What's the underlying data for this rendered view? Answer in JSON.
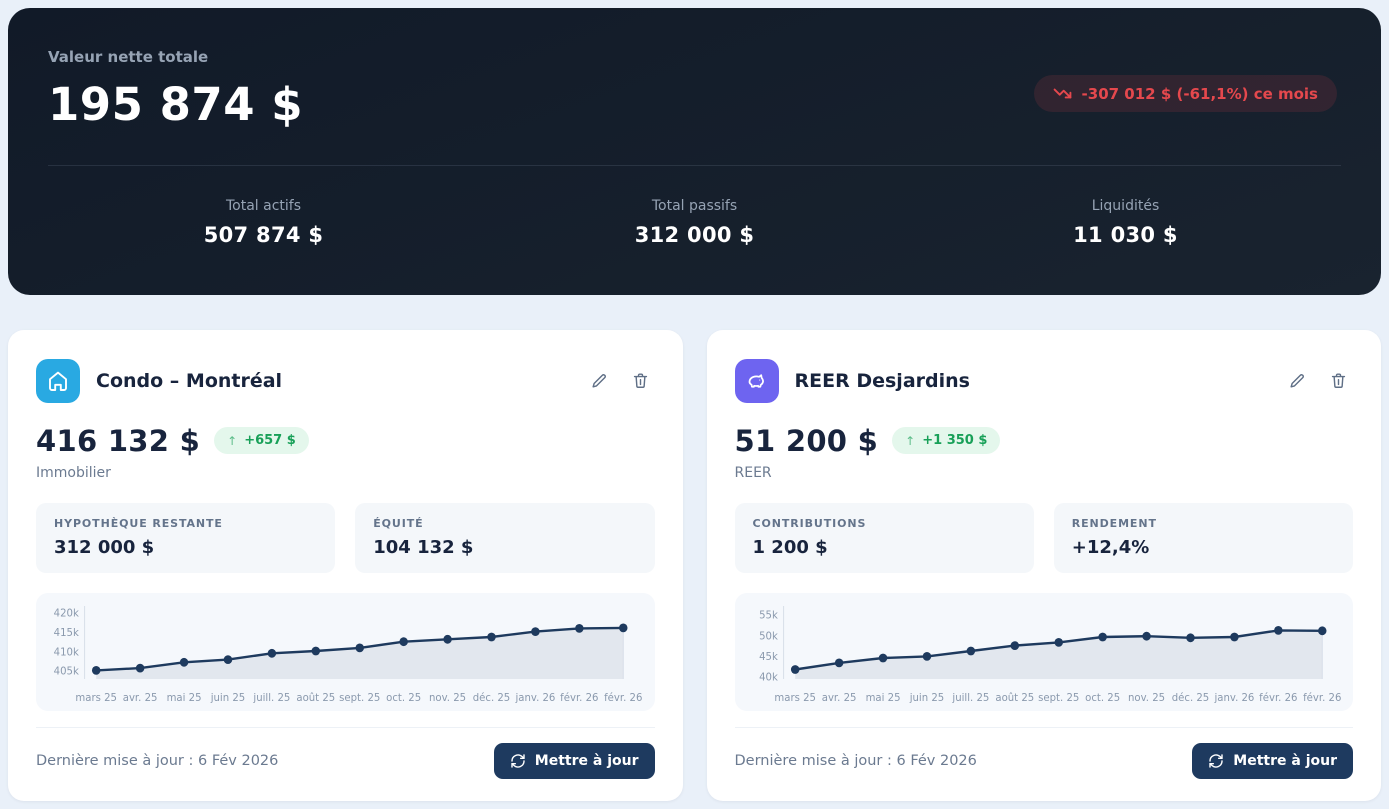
{
  "summary": {
    "label": "Valeur nette totale",
    "value": "195 874 $",
    "change_badge": "-307 012 $ (-61,1%) ce mois",
    "stats": [
      {
        "label": "Total actifs",
        "value": "507 874 $"
      },
      {
        "label": "Total passifs",
        "value": "312 000 $"
      },
      {
        "label": "Liquidités",
        "value": "11 030 $"
      }
    ]
  },
  "cards": [
    {
      "title": "Condo – Montréal",
      "icon": "house-icon",
      "icon_color": "#29a9e2",
      "value": "416 132 $",
      "change": "+657 $",
      "category": "Immobilier",
      "stats": [
        {
          "label": "HYPOTHÈQUE RESTANTE",
          "value": "312 000 $"
        },
        {
          "label": "ÉQUITÉ",
          "value": "104 132 $"
        }
      ],
      "last_updated": "Dernière mise à jour : 6 Fév 2026",
      "update_button": "Mettre à jour"
    },
    {
      "title": "REER Desjardins",
      "icon": "piggy-bank-icon",
      "icon_color": "#6e64f0",
      "value": "51 200 $",
      "change": "+1 350 $",
      "category": "REER",
      "stats": [
        {
          "label": "CONTRIBUTIONS",
          "value": "1 200 $"
        },
        {
          "label": "RENDEMENT",
          "value": "+12,4%"
        }
      ],
      "last_updated": "Dernière mise à jour : 6 Fév 2026",
      "update_button": "Mettre à jour"
    }
  ],
  "chart_data": [
    {
      "type": "area",
      "title": "Condo – Montréal value history",
      "categories": [
        "mars 25",
        "avr. 25",
        "mai 25",
        "juin 25",
        "juill. 25",
        "août 25",
        "sept. 25",
        "oct. 25",
        "nov. 25",
        "déc. 25",
        "janv. 26",
        "févr. 26",
        "févr. 26"
      ],
      "values": [
        405200,
        405800,
        407300,
        408000,
        409600,
        410200,
        411000,
        412600,
        413200,
        413800,
        415200,
        416000,
        416132
      ],
      "ylim": [
        403000,
        421000
      ],
      "yticks": [
        405000,
        410000,
        415000,
        420000
      ],
      "ytick_labels": [
        "405k",
        "410k",
        "415k",
        "420k"
      ],
      "xlabel": "",
      "ylabel": "",
      "grid": false,
      "legend": false
    },
    {
      "type": "area",
      "title": "REER Desjardins value history",
      "categories": [
        "mars 25",
        "avr. 25",
        "mai 25",
        "juin 25",
        "juill. 25",
        "août 25",
        "sept. 25",
        "oct. 25",
        "nov. 25",
        "déc. 25",
        "janv. 26",
        "févr. 26",
        "févr. 26"
      ],
      "values": [
        41800,
        43400,
        44600,
        45000,
        46300,
        47600,
        48400,
        49700,
        49900,
        49500,
        49700,
        51300,
        51200
      ],
      "ylim": [
        39500,
        56500
      ],
      "yticks": [
        40000,
        45000,
        50000,
        55000
      ],
      "ytick_labels": [
        "40k",
        "45k",
        "50k",
        "55k"
      ],
      "xlabel": "",
      "ylabel": "",
      "grid": false,
      "legend": false
    }
  ],
  "theme": {
    "accent": "#1e3a5f",
    "danger": "#e5484d",
    "success": "#18a058"
  }
}
